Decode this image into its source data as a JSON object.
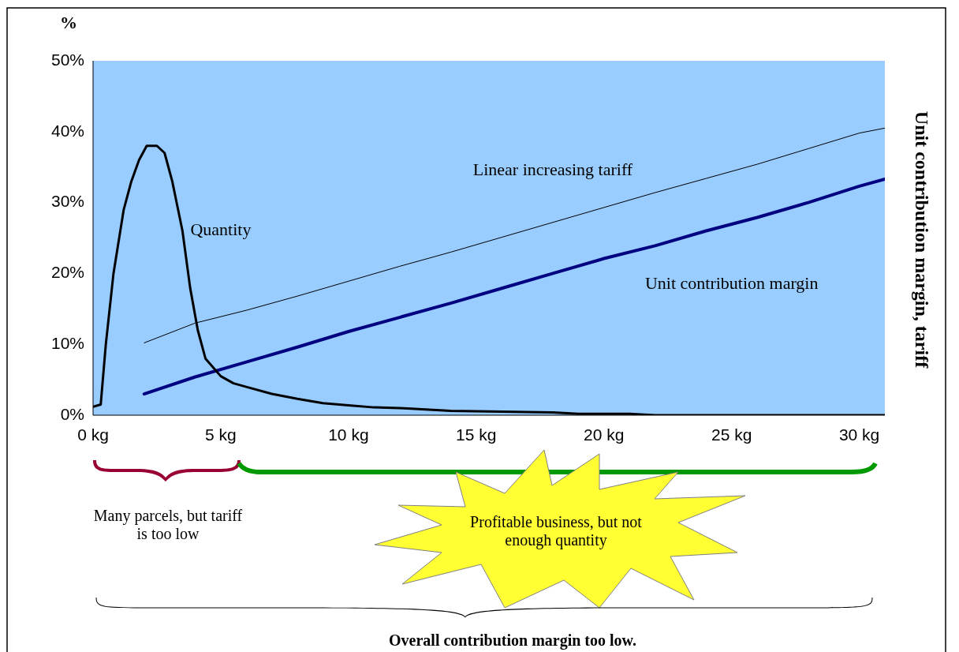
{
  "chart_data": {
    "type": "line",
    "ylabel": "%",
    "y2label": "Unit contribution margin, tariff",
    "xlim": [
      0,
      31
    ],
    "xticks": [
      {
        "value": 0,
        "label": "0 kg"
      },
      {
        "value": 5,
        "label": "5 kg"
      },
      {
        "value": 10,
        "label": "10 kg"
      },
      {
        "value": 15,
        "label": "15 kg"
      },
      {
        "value": 20,
        "label": "20 kg"
      },
      {
        "value": 25,
        "label": "25 kg"
      },
      {
        "value": 30,
        "label": "30 kg"
      }
    ],
    "ylim": [
      0,
      50
    ],
    "yticks": [
      {
        "value": 0,
        "label": "0%"
      },
      {
        "value": 10,
        "label": "10%"
      },
      {
        "value": 20,
        "label": "20%"
      },
      {
        "value": 30,
        "label": "30%"
      },
      {
        "value": 40,
        "label": "40%"
      },
      {
        "value": 50,
        "label": "50%"
      }
    ],
    "grid": false,
    "legend": false,
    "marker": "none",
    "line_style": "solid",
    "series": [
      {
        "name": "Quantity",
        "color": "#000000",
        "x": [
          0,
          0.3,
          0.5,
          0.8,
          1.2,
          1.5,
          1.8,
          2.1,
          2.5,
          2.8,
          3.1,
          3.5,
          3.8,
          4.1,
          4.4,
          5,
          5.5,
          6,
          7,
          8,
          9,
          10,
          11,
          12,
          14,
          16,
          18,
          19,
          21,
          22,
          31
        ],
        "values": [
          1.2,
          1.5,
          10,
          20,
          29,
          33,
          36,
          38,
          38,
          37,
          33,
          26,
          18,
          12,
          8,
          5.5,
          4.5,
          4,
          3,
          2.3,
          1.7,
          1.4,
          1.1,
          1,
          0.6,
          0.5,
          0.4,
          0.2,
          0.2,
          0,
          0
        ]
      },
      {
        "name": "Linear increasing tariff",
        "color": "#000000",
        "x": [
          2,
          4,
          6,
          8,
          10,
          12,
          14,
          16,
          18,
          20,
          22,
          24,
          26,
          28,
          30,
          31
        ],
        "values": [
          10.2,
          13,
          14.8,
          16.8,
          18.9,
          21,
          23,
          25.1,
          27.2,
          29.3,
          31.4,
          33.4,
          35.4,
          37.6,
          39.8,
          40.5
        ]
      },
      {
        "name": "Unit contribution margin",
        "color": "#000080",
        "x": [
          2,
          4,
          6,
          8,
          10,
          12,
          14,
          16,
          18,
          20,
          22,
          24,
          26,
          28,
          30,
          31
        ],
        "values": [
          3,
          5.4,
          7.5,
          9.6,
          11.8,
          13.8,
          15.8,
          17.9,
          20,
          22.1,
          23.9,
          26,
          27.9,
          30,
          32.3,
          33.3
        ]
      }
    ],
    "annotations": [
      "Many parcels, but tariff is too low",
      "Profitable business, but not enough quantity",
      "Overall contribution margin too low."
    ]
  }
}
